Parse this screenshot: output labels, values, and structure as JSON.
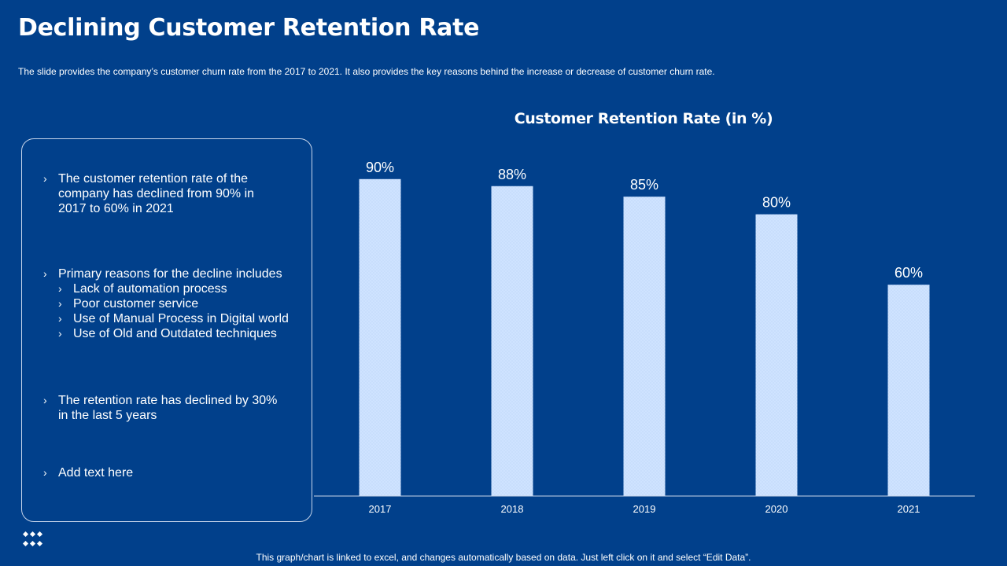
{
  "slide": {
    "title": "Declining Customer Retention Rate",
    "subtitle": "The slide provides  the company’s customer churn rate from the 2017 to 2021. It also provides  the key reasons behind the increase or decrease  of customer churn rate.",
    "footer": "This graph/chart is linked to excel, and changes automatically based on data. Just left click on it and select “Edit Data”."
  },
  "panel": {
    "bullet_glyph": "›",
    "point1": "The customer retention rate of the company has declined from 90% in 2017 to 60% in 2021",
    "point2": "Primary reasons for the decline includes",
    "reasons": [
      "Lack of automation process",
      "Poor customer service",
      "Use of Manual Process in Digital world",
      "Use of Old and Outdated techniques"
    ],
    "point3": "The retention rate has declined by 30% in the last 5 years",
    "point4": "Add text here"
  },
  "chart_data": {
    "type": "bar",
    "title": "Customer Retention Rate (in %)",
    "categories": [
      "2017",
      "2018",
      "2019",
      "2020",
      "2021"
    ],
    "values": [
      90,
      88,
      85,
      80,
      60
    ],
    "data_labels": [
      "90%",
      "88%",
      "85%",
      "80%",
      "60%"
    ],
    "xlabel": "",
    "ylabel": "",
    "ylim": [
      0,
      100
    ],
    "grid": false,
    "legend": "none",
    "bar_color": "#cfe3ff",
    "axis_color": "#c9d6ea"
  },
  "colors": {
    "background": "#01408b",
    "text": "#ffffff"
  },
  "icons": {
    "footer_icon": "dots-grid-icon"
  }
}
